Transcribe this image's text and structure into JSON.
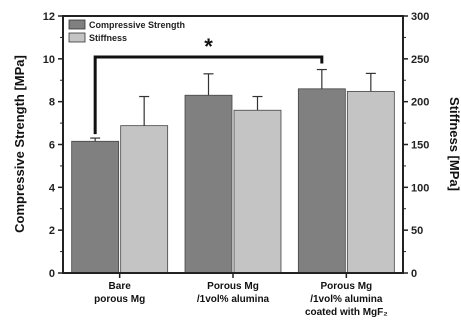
{
  "chart_data": {
    "type": "bar",
    "categories": [
      [
        "Bare",
        "porous Mg"
      ],
      [
        "Porous Mg",
        "/1vol% alumina"
      ],
      [
        "Porous Mg",
        "/1vol% alumina",
        "coated with MgF₂"
      ]
    ],
    "series": [
      {
        "name": "Compressive Strength",
        "axis": "left",
        "color": "#808080",
        "values": [
          6.15,
          8.3,
          8.6
        ],
        "errors": [
          0.15,
          1.0,
          0.9
        ]
      },
      {
        "name": "Stiffness",
        "axis": "right",
        "color": "#c4c4c4",
        "values": [
          172,
          190,
          212
        ],
        "errors": [
          34,
          16,
          21
        ]
      }
    ],
    "ylabel": "Compressive Strength [MPa]",
    "y2label": "Stiffness [MPa]",
    "ylim": [
      0,
      12
    ],
    "y2lim": [
      0,
      300
    ],
    "yticks": [
      "0",
      "2",
      "4",
      "6",
      "8",
      "10",
      "12"
    ],
    "y2ticks": [
      "0",
      "50",
      "100",
      "150",
      "200",
      "250",
      "300"
    ],
    "legend_position": "top-left",
    "significance": {
      "label": "*",
      "from_category": 0,
      "to_category": 2
    }
  }
}
